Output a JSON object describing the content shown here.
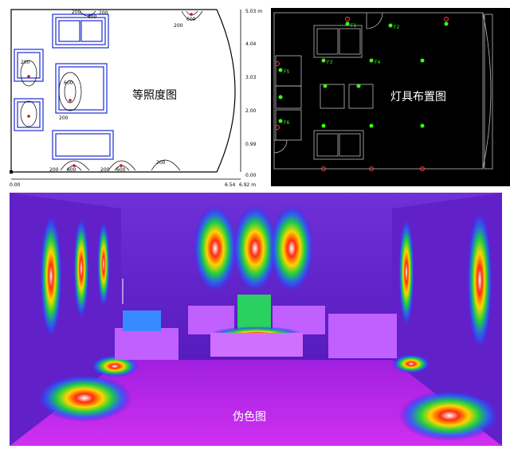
{
  "isolux": {
    "title": "等照度图",
    "y_ticks": [
      "5.03 m",
      "4.04",
      "3.03",
      "2.00",
      "0.99",
      "0.00"
    ],
    "x_ticks": [
      "0.00",
      "6.54",
      "6.92 m"
    ],
    "contour_labels": [
      "200",
      "600",
      "200",
      "600",
      "200",
      "600",
      "200",
      "600",
      "200",
      "600",
      "200",
      "200",
      "200"
    ]
  },
  "layout": {
    "title": "灯具布置图",
    "fixture_tags": [
      "F1",
      "F2",
      "F3",
      "F4",
      "F5",
      "F6"
    ]
  },
  "falsecolor": {
    "title": "伪色图"
  },
  "colors": {
    "plan_line": "#1a2bd6",
    "contour": "#cc1111",
    "layout_bg": "#000000",
    "fixture": "#39ff14",
    "falsecolor_base": "#5a1acc"
  }
}
